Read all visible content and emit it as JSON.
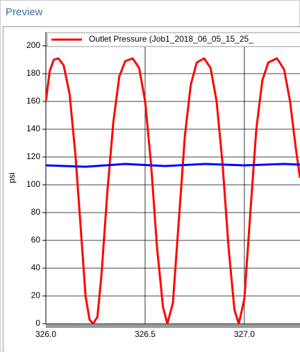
{
  "panel_title": "Preview",
  "chart_data": {
    "type": "line",
    "ylabel": "psi",
    "xlim": [
      326.0,
      327.28
    ],
    "ylim": [
      0,
      210
    ],
    "xticks": [
      {
        "value": 326.0,
        "label": "326.0"
      },
      326.5,
      {
        "value": 327.0,
        "label": "327.0"
      }
    ],
    "yticks": [
      0,
      20,
      40,
      60,
      80,
      100,
      120,
      140,
      160,
      180,
      200
    ],
    "grid": true,
    "series": [
      {
        "name": "Outlet Pressure (Job1_2018_06_05_15_25_",
        "color": "#ff0000",
        "x": [
          326.0,
          326.02,
          326.04,
          326.063,
          326.09,
          326.12,
          326.15,
          326.18,
          326.2,
          326.22,
          326.238,
          326.26,
          326.28,
          326.31,
          326.34,
          326.37,
          326.4,
          326.437,
          326.47,
          326.5,
          326.53,
          326.56,
          326.59,
          326.612,
          326.64,
          326.67,
          326.7,
          326.73,
          326.76,
          326.797,
          326.83,
          326.86,
          326.89,
          326.92,
          326.95,
          326.972,
          327.0,
          327.03,
          327.06,
          327.09,
          327.12,
          327.164,
          327.2,
          327.23,
          327.26,
          327.28
        ],
        "values": [
          160,
          182,
          190,
          191,
          186,
          165,
          120,
          60,
          20,
          3,
          0,
          5,
          35,
          95,
          145,
          178,
          189,
          191,
          184,
          160,
          115,
          55,
          12,
          0,
          15,
          75,
          135,
          172,
          188,
          191,
          184,
          160,
          115,
          55,
          10,
          0,
          18,
          80,
          140,
          175,
          188,
          191,
          183,
          160,
          125,
          105
        ]
      },
      {
        "color": "#0000ff",
        "x": [
          326.0,
          326.2,
          326.4,
          326.6,
          326.8,
          327.0,
          327.2,
          327.28
        ],
        "values": [
          114,
          113,
          115,
          113.5,
          115,
          114,
          115,
          114.5
        ]
      }
    ]
  }
}
